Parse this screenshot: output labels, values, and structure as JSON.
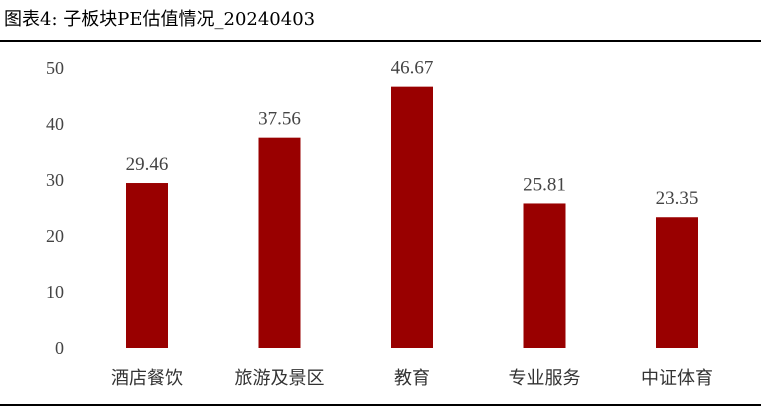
{
  "header": {
    "title": "图表4:  子板块PE估值情况_20240403"
  },
  "chart_data": {
    "type": "bar",
    "title": "",
    "xlabel": "",
    "ylabel": "",
    "categories": [
      "酒店餐饮",
      "旅游及景区",
      "教育",
      "专业服务",
      "中证体育"
    ],
    "values": [
      29.46,
      37.56,
      46.67,
      25.81,
      23.35
    ],
    "value_labels": [
      "29.46",
      "37.56",
      "46.67",
      "25.81",
      "23.35"
    ],
    "ylim": [
      0,
      50
    ],
    "yticks": [
      0,
      10,
      20,
      30,
      40,
      50
    ],
    "ytick_labels": [
      "0",
      "10",
      "20",
      "30",
      "40",
      "50"
    ],
    "bar_color": "#990000",
    "grid": false,
    "legend": "none"
  }
}
